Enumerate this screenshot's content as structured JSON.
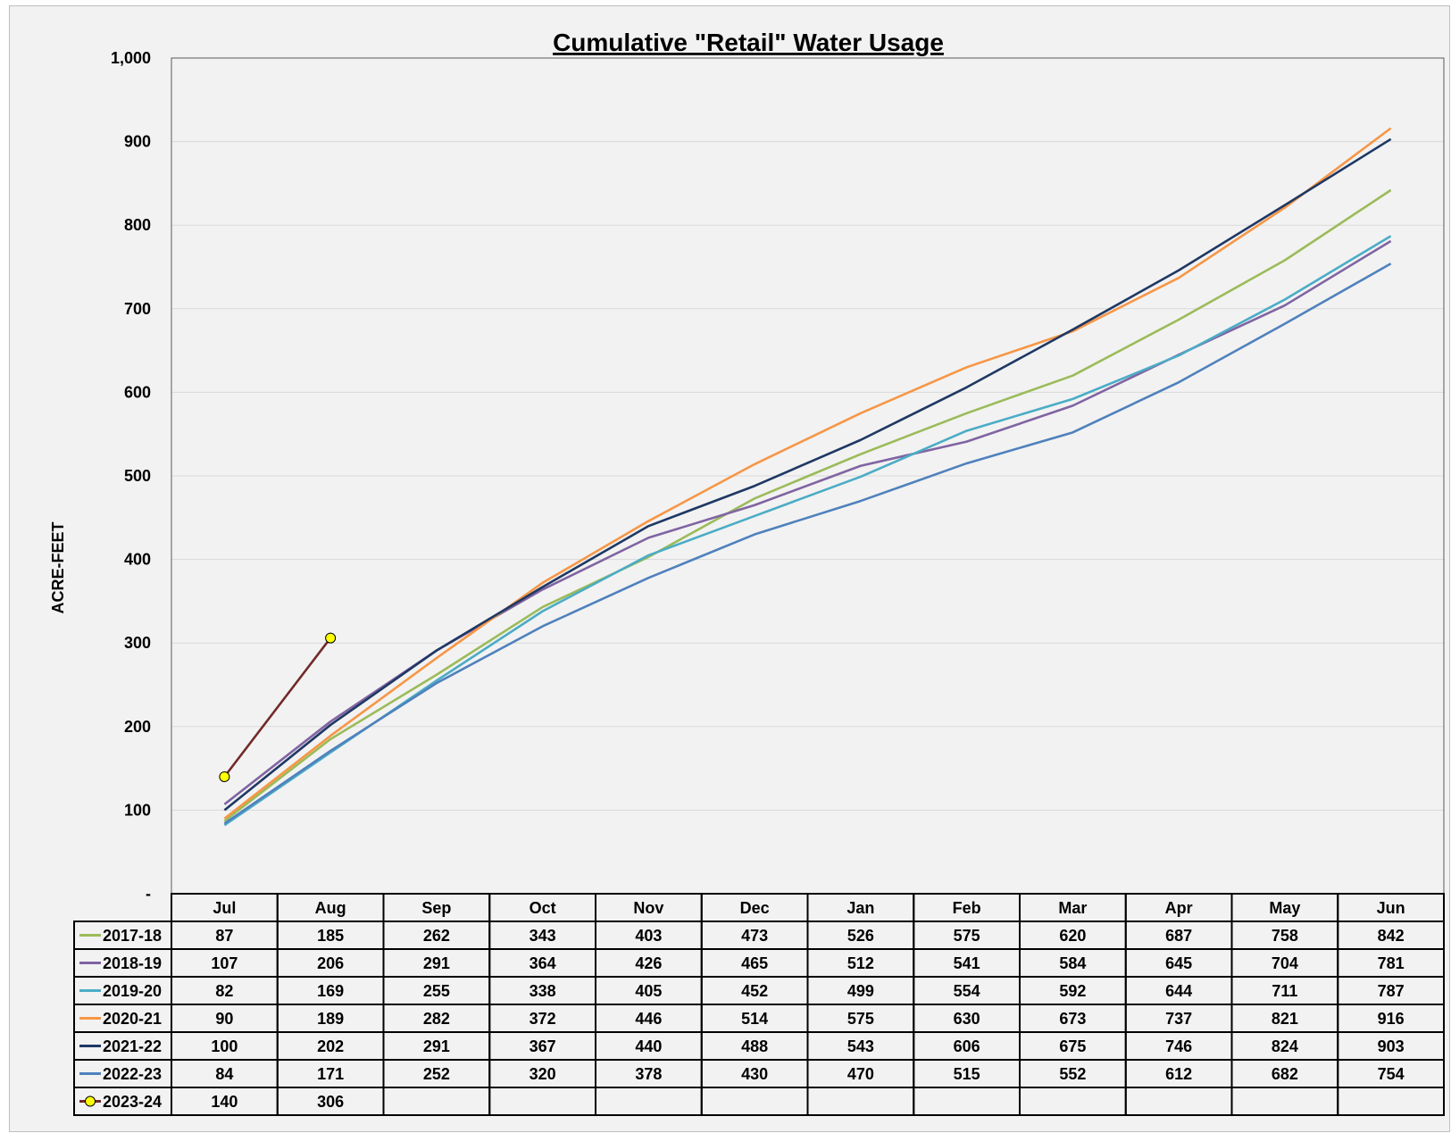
{
  "chart_data": {
    "type": "line",
    "title": "Cumulative \"Retail\" Water Usage",
    "xlabel": "",
    "ylabel": "ACRE-FEET",
    "ylim": [
      0,
      1000
    ],
    "yticks": [
      {
        "value": 0,
        "label": "-"
      },
      {
        "value": 100,
        "label": "100"
      },
      {
        "value": 200,
        "label": "200"
      },
      {
        "value": 300,
        "label": "300"
      },
      {
        "value": 400,
        "label": "400"
      },
      {
        "value": 500,
        "label": "500"
      },
      {
        "value": 600,
        "label": "600"
      },
      {
        "value": 700,
        "label": "700"
      },
      {
        "value": 800,
        "label": "800"
      },
      {
        "value": 900,
        "label": "900"
      },
      {
        "value": 1000,
        "label": "1,000"
      }
    ],
    "grid": true,
    "legend": "data-table",
    "categories": [
      "Jul",
      "Aug",
      "Sep",
      "Oct",
      "Nov",
      "Dec",
      "Jan",
      "Feb",
      "Mar",
      "Apr",
      "May",
      "Jun"
    ],
    "series": [
      {
        "name": "2017-18",
        "color": "#9bbb59",
        "marker": false,
        "values": [
          87,
          185,
          262,
          343,
          403,
          473,
          526,
          575,
          620,
          687,
          758,
          842
        ]
      },
      {
        "name": "2018-19",
        "color": "#8064a2",
        "marker": false,
        "values": [
          107,
          206,
          291,
          364,
          426,
          465,
          512,
          541,
          584,
          645,
          704,
          781
        ]
      },
      {
        "name": "2019-20",
        "color": "#4bacc6",
        "marker": false,
        "values": [
          82,
          169,
          255,
          338,
          405,
          452,
          499,
          554,
          592,
          644,
          711,
          787
        ]
      },
      {
        "name": "2020-21",
        "color": "#f79646",
        "marker": false,
        "values": [
          90,
          189,
          282,
          372,
          446,
          514,
          575,
          630,
          673,
          737,
          821,
          916
        ]
      },
      {
        "name": "2021-22",
        "color": "#1f3864",
        "marker": false,
        "values": [
          100,
          202,
          291,
          367,
          440,
          488,
          543,
          606,
          675,
          746,
          824,
          903
        ]
      },
      {
        "name": "2022-23",
        "color": "#4f81bd",
        "marker": false,
        "values": [
          84,
          171,
          252,
          320,
          378,
          430,
          470,
          515,
          552,
          612,
          682,
          754
        ]
      },
      {
        "name": "2023-24",
        "color": "#722a2a",
        "marker": true,
        "marker_color": "#ffff00",
        "values": [
          140,
          306,
          null,
          null,
          null,
          null,
          null,
          null,
          null,
          null,
          null,
          null
        ]
      }
    ]
  }
}
